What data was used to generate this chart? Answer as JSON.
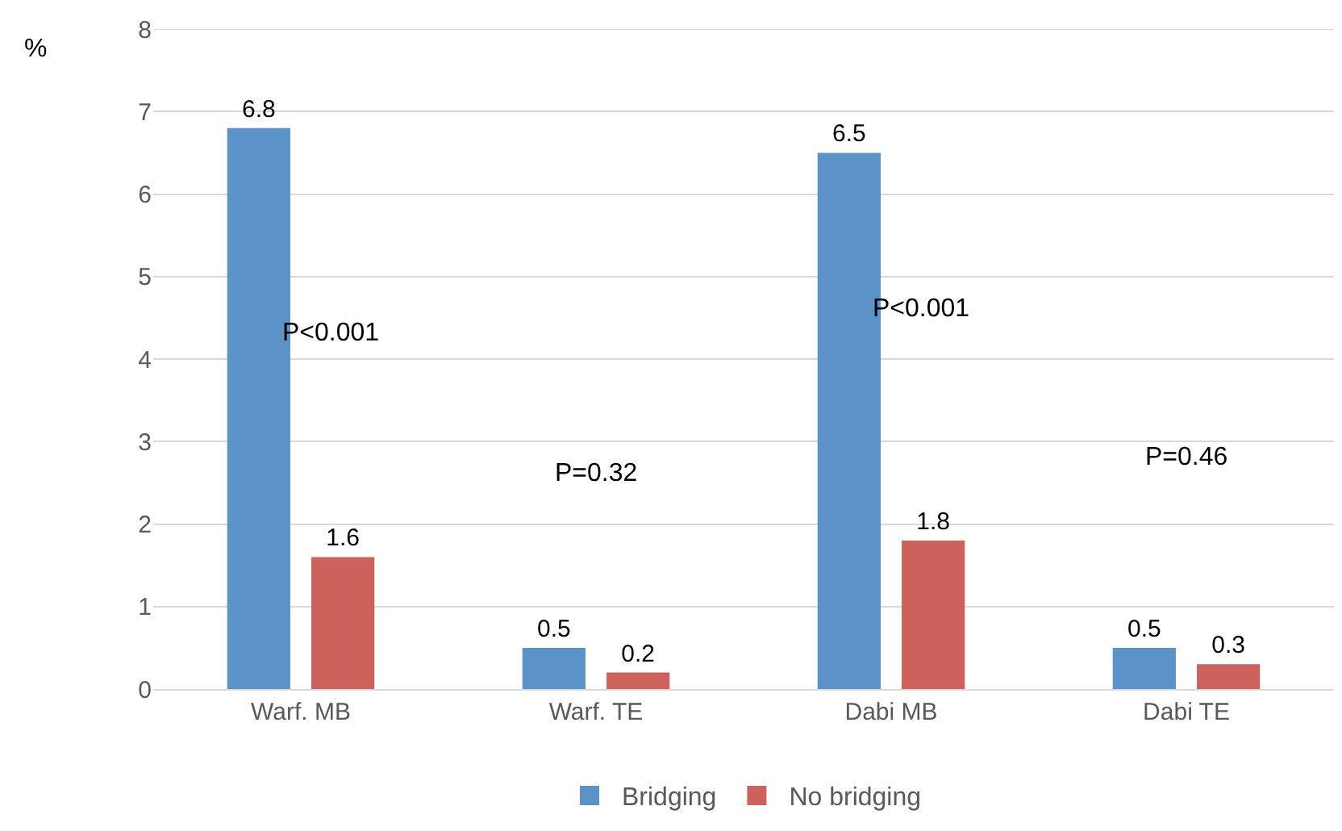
{
  "chart_data": {
    "type": "bar",
    "ylabel": "%",
    "categories": [
      "Warf. MB",
      "Warf. TE",
      "Dabi MB",
      "Dabi TE"
    ],
    "series": [
      {
        "name": "Bridging",
        "color": "#5b93c8",
        "values": [
          6.8,
          0.5,
          6.5,
          0.5
        ]
      },
      {
        "name": "No bridging",
        "color": "#cd625c",
        "values": [
          1.6,
          0.2,
          1.8,
          0.3
        ]
      }
    ],
    "ylim": [
      0,
      8
    ],
    "yticks": [
      0,
      1,
      2,
      3,
      4,
      5,
      6,
      7,
      8
    ],
    "grid": "y",
    "legend": "bottom",
    "data_labels": true,
    "annotations": [
      "P<0.001",
      "P=0.32",
      "P<0.001",
      "P=0.46"
    ]
  }
}
